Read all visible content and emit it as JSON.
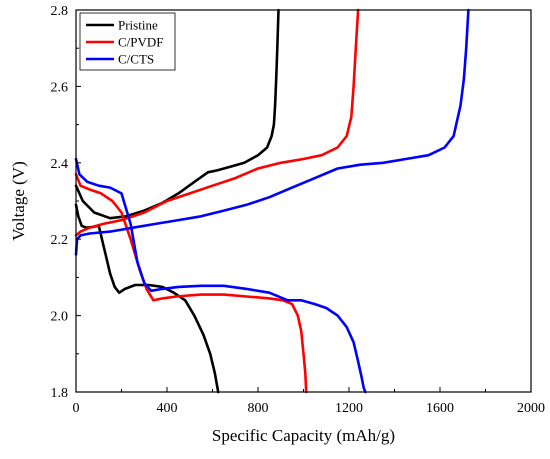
{
  "chart_data": {
    "type": "line",
    "title": "",
    "xlabel": "Specific Capacity (mAh/g)",
    "ylabel": "Voltage (V)",
    "xlim": [
      0,
      2000
    ],
    "ylim": [
      1.8,
      2.8
    ],
    "xticks": [
      "0",
      "400",
      "800",
      "1200",
      "1600",
      "2000"
    ],
    "yticks": [
      "1.8",
      "2.0",
      "2.2",
      "2.4",
      "2.6",
      "2.8"
    ],
    "grid": false,
    "legend_position": "top-left",
    "series": [
      {
        "name": "Pristine",
        "color": "#000000",
        "discharge": {
          "x": [
            0,
            10,
            25,
            45,
            70,
            100,
            130,
            150,
            170,
            190,
            215,
            260,
            320,
            380,
            430,
            480,
            520,
            560,
            590,
            610,
            625
          ],
          "y": [
            2.29,
            2.26,
            2.235,
            2.23,
            2.232,
            2.235,
            2.16,
            2.11,
            2.075,
            2.06,
            2.07,
            2.08,
            2.08,
            2.075,
            2.06,
            2.04,
            2.0,
            1.95,
            1.9,
            1.85,
            1.8
          ]
        },
        "charge": {
          "x": [
            0,
            30,
            80,
            150,
            220,
            300,
            380,
            450,
            520,
            580,
            620,
            680,
            740,
            800,
            840,
            860,
            870,
            875,
            880,
            885,
            890
          ],
          "y": [
            2.34,
            2.3,
            2.27,
            2.255,
            2.26,
            2.275,
            2.295,
            2.32,
            2.35,
            2.375,
            2.38,
            2.39,
            2.4,
            2.42,
            2.44,
            2.47,
            2.5,
            2.55,
            2.62,
            2.7,
            2.8
          ]
        }
      },
      {
        "name": "C/PVDF",
        "color": "#ff0000",
        "discharge": {
          "x": [
            0,
            20,
            60,
            110,
            160,
            200,
            240,
            280,
            310,
            340,
            380,
            440,
            550,
            650,
            750,
            850,
            910,
            950,
            975,
            990,
            1000,
            1008,
            1012
          ],
          "y": [
            2.37,
            2.34,
            2.33,
            2.32,
            2.3,
            2.27,
            2.2,
            2.12,
            2.07,
            2.04,
            2.045,
            2.05,
            2.055,
            2.055,
            2.05,
            2.045,
            2.04,
            2.03,
            2.0,
            1.96,
            1.9,
            1.85,
            1.8
          ]
        },
        "charge": {
          "x": [
            0,
            20,
            60,
            120,
            200,
            300,
            400,
            500,
            600,
            700,
            800,
            900,
            1000,
            1080,
            1150,
            1190,
            1210,
            1220,
            1230,
            1240
          ],
          "y": [
            2.21,
            2.22,
            2.23,
            2.24,
            2.25,
            2.27,
            2.3,
            2.32,
            2.34,
            2.36,
            2.385,
            2.4,
            2.41,
            2.42,
            2.44,
            2.47,
            2.52,
            2.6,
            2.7,
            2.8
          ]
        }
      },
      {
        "name": "C/CTS",
        "color": "#0000ff",
        "discharge": {
          "x": [
            0,
            15,
            50,
            100,
            150,
            200,
            240,
            270,
            300,
            330,
            380,
            450,
            550,
            650,
            750,
            850,
            930,
            990,
            1050,
            1100,
            1150,
            1190,
            1220,
            1240,
            1255,
            1265,
            1272
          ],
          "y": [
            2.41,
            2.37,
            2.35,
            2.34,
            2.335,
            2.32,
            2.24,
            2.14,
            2.085,
            2.065,
            2.07,
            2.075,
            2.078,
            2.078,
            2.07,
            2.06,
            2.04,
            2.04,
            2.03,
            2.02,
            2.0,
            1.97,
            1.93,
            1.88,
            1.84,
            1.81,
            1.8
          ]
        },
        "charge": {
          "x": [
            0,
            5,
            20,
            60,
            150,
            250,
            350,
            450,
            550,
            650,
            750,
            850,
            950,
            1050,
            1150,
            1250,
            1350,
            1450,
            1550,
            1620,
            1660,
            1690,
            1705,
            1715,
            1725
          ],
          "y": [
            2.16,
            2.2,
            2.21,
            2.215,
            2.22,
            2.23,
            2.24,
            2.25,
            2.26,
            2.275,
            2.29,
            2.31,
            2.335,
            2.36,
            2.385,
            2.395,
            2.4,
            2.41,
            2.42,
            2.44,
            2.47,
            2.55,
            2.62,
            2.7,
            2.8
          ]
        }
      }
    ]
  }
}
